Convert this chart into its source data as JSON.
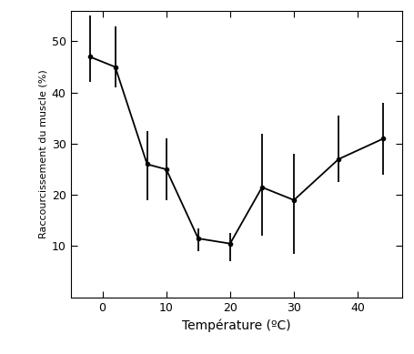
{
  "x": [
    -2,
    2,
    7,
    10,
    15,
    20,
    25,
    30,
    37,
    44
  ],
  "y": [
    47,
    45,
    26,
    25,
    11.5,
    10.5,
    21.5,
    19,
    27,
    31
  ],
  "yerr_lower": [
    5,
    4,
    7,
    6,
    2.5,
    3.5,
    9.5,
    10.5,
    4.5,
    7
  ],
  "yerr_upper": [
    8,
    8,
    6.5,
    6,
    2,
    2,
    10.5,
    9,
    8.5,
    7
  ],
  "xlabel": "Température (ºC)",
  "ylabel": "Raccourcissement du muscle (%)",
  "xlim": [
    -5,
    47
  ],
  "ylim": [
    0,
    56
  ],
  "xticks": [
    0,
    10,
    20,
    30,
    40
  ],
  "yticks": [
    10,
    20,
    30,
    40,
    50
  ],
  "line_color": "#000000",
  "bg_color": "#ffffff",
  "markersize": 3,
  "linewidth": 1.3,
  "elinewidth": 1.3
}
